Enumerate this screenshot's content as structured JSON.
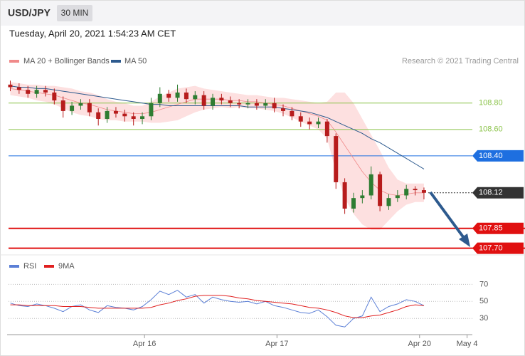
{
  "header": {
    "symbol": "USD/JPY",
    "interval": "30 MIN",
    "timestamp": "Tuesday, April 20, 2021 1:54:23 AM CET"
  },
  "chart_data": [
    {
      "type": "candlestick",
      "source": "Research © 2021 Trading Central",
      "xlim": [
        -0.2,
        52.5
      ],
      "ylim": [
        107.66,
        109.02
      ],
      "up_color": "#2e7d32",
      "down_color": "#b71c1c",
      "open": [
        108.94,
        108.92,
        108.9,
        108.87,
        108.9,
        108.88,
        108.82,
        108.74,
        108.78,
        108.8,
        108.73,
        108.68,
        108.74,
        108.72,
        108.7,
        108.68,
        108.7,
        108.8,
        108.87,
        108.84,
        108.88,
        108.83,
        108.86,
        108.78,
        108.84,
        108.82,
        108.8,
        108.79,
        108.8,
        108.78,
        108.8,
        108.76,
        108.74,
        108.7,
        108.66,
        108.64,
        108.66,
        108.55,
        108.2,
        108.0,
        108.08,
        108.1,
        108.26,
        108.02,
        108.08,
        108.1,
        108.15,
        108.14
      ],
      "high": [
        108.97,
        108.95,
        108.93,
        108.93,
        108.93,
        108.91,
        108.85,
        108.81,
        108.83,
        108.83,
        108.76,
        108.77,
        108.77,
        108.75,
        108.73,
        108.73,
        108.84,
        108.92,
        108.9,
        108.94,
        108.91,
        108.89,
        108.89,
        108.87,
        108.87,
        108.85,
        108.83,
        108.83,
        108.83,
        108.83,
        108.84,
        108.79,
        108.77,
        108.73,
        108.69,
        108.69,
        108.68,
        108.57,
        108.23,
        108.12,
        108.14,
        108.32,
        108.28,
        108.11,
        108.14,
        108.18,
        108.17,
        108.16
      ],
      "low": [
        108.89,
        108.87,
        108.84,
        108.84,
        108.85,
        108.79,
        108.69,
        108.71,
        108.75,
        108.7,
        108.63,
        108.65,
        108.69,
        108.66,
        108.63,
        108.64,
        108.67,
        108.77,
        108.81,
        108.81,
        108.8,
        108.79,
        108.75,
        108.75,
        108.79,
        108.77,
        108.76,
        108.76,
        108.75,
        108.75,
        108.73,
        108.7,
        108.67,
        108.62,
        108.6,
        108.61,
        108.5,
        108.15,
        107.96,
        107.97,
        108.04,
        108.07,
        107.98,
        107.99,
        108.05,
        108.07,
        108.1,
        108.07
      ],
      "close": [
        108.92,
        108.9,
        108.87,
        108.9,
        108.88,
        108.82,
        108.74,
        108.78,
        108.8,
        108.73,
        108.68,
        108.74,
        108.72,
        108.7,
        108.68,
        108.7,
        108.8,
        108.87,
        108.84,
        108.88,
        108.83,
        108.86,
        108.78,
        108.84,
        108.82,
        108.8,
        108.79,
        108.8,
        108.78,
        108.8,
        108.76,
        108.74,
        108.7,
        108.66,
        108.64,
        108.66,
        108.55,
        108.2,
        108.0,
        108.08,
        108.1,
        108.26,
        108.02,
        108.08,
        108.1,
        108.15,
        108.14,
        108.12
      ],
      "series": [
        {
          "name": "MA 20 + Bollinger Bands",
          "color": "#f08a8a",
          "band_color": "#fde0e0",
          "values": [
            108.91,
            108.9,
            108.89,
            108.88,
            108.87,
            108.86,
            108.84,
            108.82,
            108.8,
            108.79,
            108.77,
            108.75,
            108.74,
            108.73,
            108.72,
            108.72,
            108.73,
            108.75,
            108.77,
            108.79,
            108.81,
            108.83,
            108.83,
            108.83,
            108.83,
            108.82,
            108.82,
            108.81,
            108.81,
            108.8,
            108.79,
            108.78,
            108.76,
            108.74,
            108.72,
            108.7,
            108.67,
            108.58,
            108.48,
            108.38,
            108.28,
            108.2,
            108.14,
            108.11,
            108.1,
            108.11,
            108.12,
            108.12
          ],
          "upper": [
            108.96,
            108.95,
            108.94,
            108.94,
            108.93,
            108.93,
            108.92,
            108.91,
            108.89,
            108.88,
            108.86,
            108.83,
            108.81,
            108.8,
            108.78,
            108.78,
            108.81,
            108.85,
            108.88,
            108.91,
            108.92,
            108.93,
            108.91,
            108.9,
            108.89,
            108.88,
            108.87,
            108.86,
            108.86,
            108.85,
            108.84,
            108.84,
            108.83,
            108.82,
            108.81,
            108.8,
            108.81,
            108.88,
            108.88,
            108.8,
            108.68,
            108.56,
            108.44,
            108.31,
            108.22,
            108.19,
            108.19,
            108.19
          ],
          "lower": [
            108.86,
            108.85,
            108.84,
            108.82,
            108.81,
            108.79,
            108.76,
            108.73,
            108.71,
            108.7,
            108.68,
            108.67,
            108.67,
            108.66,
            108.66,
            108.66,
            108.65,
            108.65,
            108.66,
            108.67,
            108.7,
            108.73,
            108.75,
            108.76,
            108.77,
            108.76,
            108.77,
            108.76,
            108.76,
            108.75,
            108.74,
            108.72,
            108.69,
            108.66,
            108.63,
            108.6,
            108.53,
            108.28,
            108.08,
            107.96,
            107.88,
            107.84,
            107.84,
            107.91,
            107.98,
            108.03,
            108.05,
            108.05
          ]
        },
        {
          "name": "MA 50",
          "color": "#2d5a8e",
          "values": [
            108.93,
            108.92,
            108.92,
            108.91,
            108.91,
            108.9,
            108.89,
            108.88,
            108.87,
            108.86,
            108.85,
            108.84,
            108.83,
            108.82,
            108.81,
            108.8,
            108.79,
            108.79,
            108.78,
            108.78,
            108.78,
            108.78,
            108.78,
            108.78,
            108.78,
            108.78,
            108.78,
            108.77,
            108.77,
            108.77,
            108.77,
            108.76,
            108.75,
            108.74,
            108.73,
            108.71,
            108.69,
            108.66,
            108.63,
            108.6,
            108.57,
            108.53,
            108.5,
            108.46,
            108.42,
            108.38,
            108.34,
            108.3
          ]
        }
      ],
      "levels": [
        {
          "value": 108.8,
          "label": "108.80",
          "color": "#8bc34a",
          "style": "text"
        },
        {
          "value": 108.6,
          "label": "108.60",
          "color": "#8bc34a",
          "style": "text"
        },
        {
          "value": 108.4,
          "label": "108.40",
          "color": "#1e6fe0",
          "style": "box"
        },
        {
          "value": 108.12,
          "label": "108.12",
          "color": "#333333",
          "style": "current"
        },
        {
          "value": 107.85,
          "label": "107.85",
          "color": "#e01010",
          "style": "heavy"
        },
        {
          "value": 107.7,
          "label": "107.70",
          "color": "#e01010",
          "style": "heavy"
        }
      ]
    },
    {
      "type": "line",
      "xlim": [
        -0.2,
        52.5
      ],
      "ylim": [
        11,
        82
      ],
      "yticks": [
        30,
        50,
        70
      ],
      "xticks": [
        {
          "value": 15.25,
          "label": "Apr 16"
        },
        {
          "value": 30.3,
          "label": "Apr 17"
        },
        {
          "value": 46.5,
          "label": "Apr 20"
        },
        {
          "value": 51.9,
          "label": "May 4"
        }
      ],
      "series": [
        {
          "name": "RSI",
          "color": "#5b7fd6",
          "values": [
            48,
            45,
            44,
            47,
            45,
            42,
            38,
            44,
            46,
            40,
            37,
            45,
            43,
            42,
            40,
            44,
            52,
            62,
            58,
            63,
            55,
            58,
            48,
            55,
            52,
            50,
            49,
            50,
            47,
            50,
            45,
            43,
            40,
            37,
            36,
            40,
            32,
            22,
            20,
            30,
            33,
            55,
            38,
            44,
            47,
            52,
            50,
            45
          ]
        },
        {
          "name": "9MA",
          "color": "#e02020",
          "values": [
            46,
            46,
            45,
            45,
            45,
            45,
            44,
            44,
            44,
            43,
            42,
            42,
            42,
            42,
            42,
            42,
            43,
            46,
            48,
            51,
            53,
            56,
            57,
            57,
            57,
            56,
            54,
            53,
            51,
            50,
            49,
            48,
            47,
            45,
            43,
            42,
            40,
            37,
            33,
            31,
            31,
            33,
            34,
            37,
            40,
            44,
            46,
            45
          ]
        }
      ]
    }
  ]
}
